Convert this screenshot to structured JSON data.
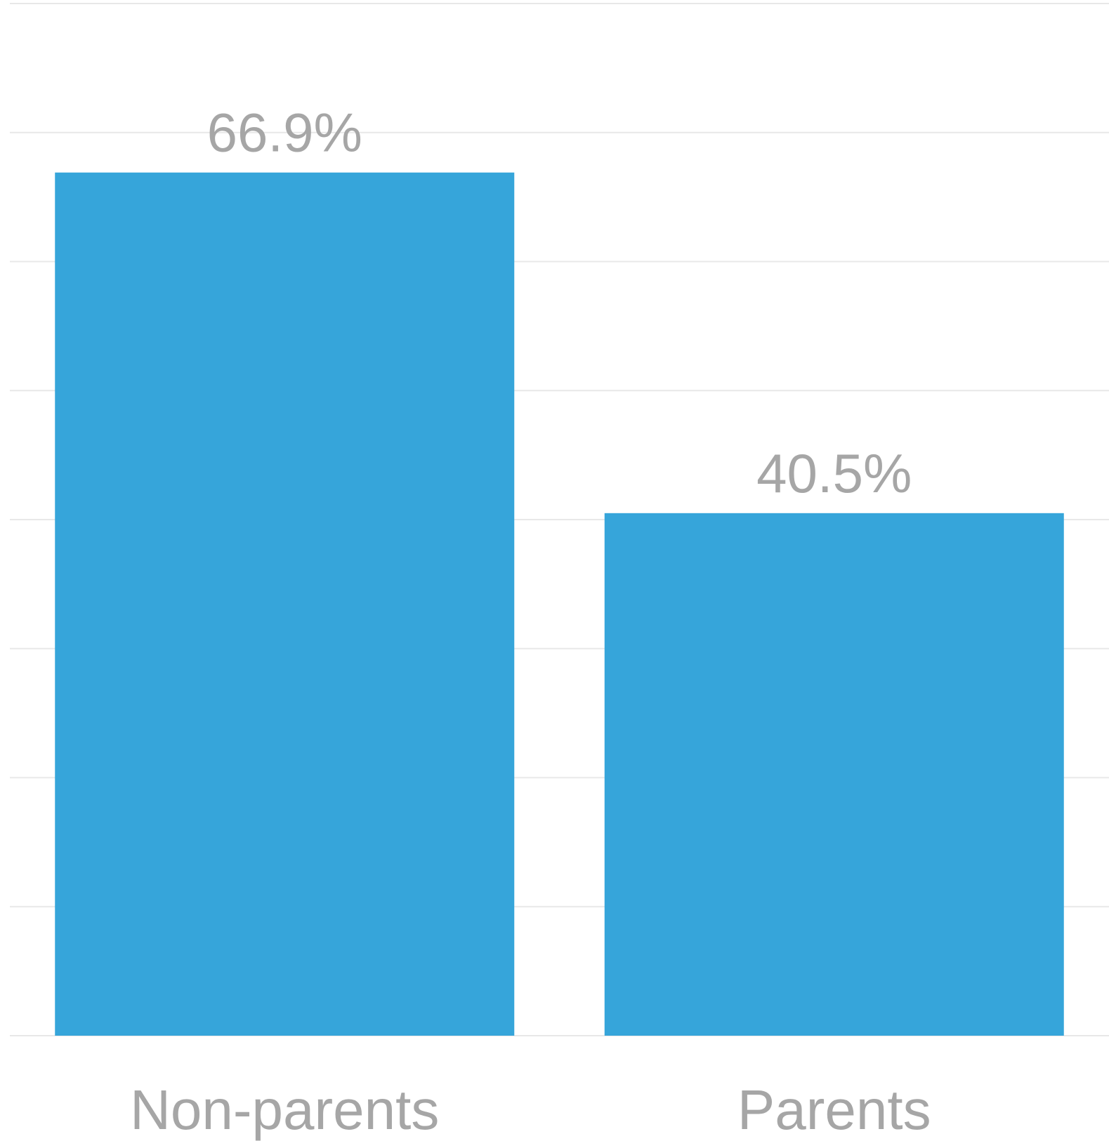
{
  "chart_data": {
    "type": "bar",
    "categories": [
      "Non-parents",
      "Parents"
    ],
    "values": [
      66.9,
      40.5
    ],
    "value_labels": [
      "66.9%",
      "40.5%"
    ],
    "title": "",
    "xlabel": "",
    "ylabel": "",
    "ylim": [
      0,
      80
    ],
    "grid": true,
    "bar_color": "#36A5DA",
    "gridline_color": "#E8E8E8",
    "label_color": "#A6A6A6"
  }
}
